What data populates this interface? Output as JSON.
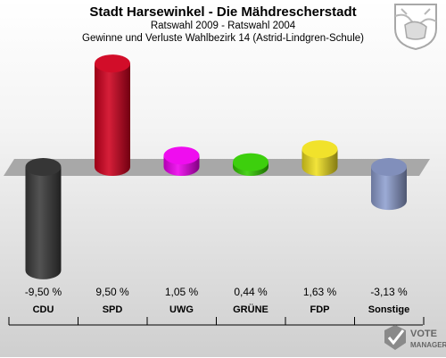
{
  "header": {
    "title": "Stadt Harsewinkel - Die Mähdrescherstadt",
    "subtitle1": "Ratswahl 2009 - Ratswahl 2004",
    "subtitle2": "Gewinne und Verluste Wahlbezirk 14 (Astrid-Lindgren-Schule)"
  },
  "logo": {
    "line1": "VOTE",
    "line2": "MANAGER"
  },
  "chart_data": {
    "type": "bar",
    "categories": [
      "CDU",
      "SPD",
      "UWG",
      "GRÜNE",
      "FDP",
      "Sonstige"
    ],
    "values": [
      -9.5,
      9.5,
      1.05,
      0.44,
      1.63,
      -3.13
    ],
    "value_labels": [
      "-9,50 %",
      "9,50 %",
      "1,05 %",
      "0,44 %",
      "1,63 %",
      "-3,13 %"
    ],
    "colors": [
      "#3c3c3c",
      "#d0001e",
      "#ee00ee",
      "#33cc00",
      "#f0e020",
      "#8f9fd0"
    ],
    "ylim": [
      -9.5,
      9.5
    ],
    "grid": false
  }
}
